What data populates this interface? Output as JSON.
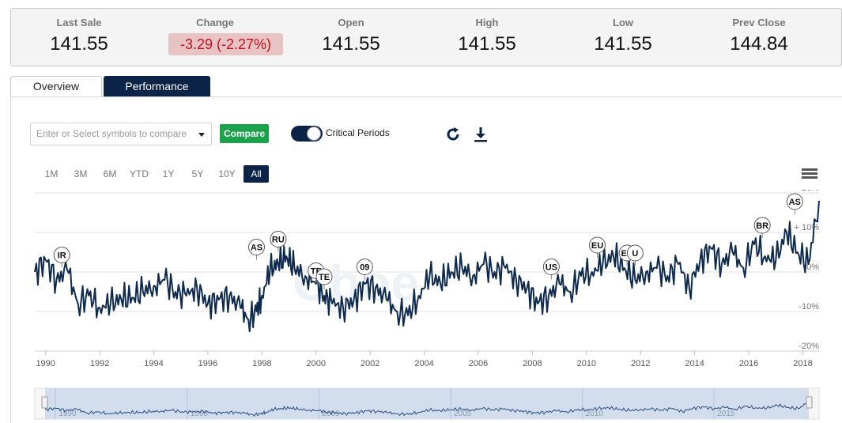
{
  "quote": {
    "cells": [
      {
        "label": "Last Sale",
        "value": "141.55"
      },
      {
        "label": "Change",
        "value": "-3.29 (-2.27%)"
      },
      {
        "label": "Open",
        "value": "141.55"
      },
      {
        "label": "High",
        "value": "141.55"
      },
      {
        "label": "Low",
        "value": "141.55"
      },
      {
        "label": "Prev Close",
        "value": "144.84"
      }
    ],
    "change_color": "#c1121f",
    "change_bg": "#e7c3c4"
  },
  "tabs": [
    {
      "label": "Overview",
      "active": false
    },
    {
      "label": "Performance",
      "active": true
    }
  ],
  "toolbar": {
    "symbol_placeholder": "Enter or Select symbols to compare",
    "compare_label": "Compare",
    "critical_periods_label": "Critical Periods",
    "critical_periods_on": true,
    "refresh_icon": "refresh-icon",
    "download_icon": "download-icon"
  },
  "ranges": [
    {
      "label": "1M",
      "active": false
    },
    {
      "label": "3M",
      "active": false
    },
    {
      "label": "6M",
      "active": false
    },
    {
      "label": "YTD",
      "active": false
    },
    {
      "label": "1Y",
      "active": false
    },
    {
      "label": "5Y",
      "active": false
    },
    {
      "label": "10Y",
      "active": false
    },
    {
      "label": "All",
      "active": true
    }
  ],
  "watermark": "Cboe",
  "colors": {
    "accent": "#0b2347",
    "line": "#0e2a4d",
    "green": "#1aa34a",
    "navigator_fill": "#c9d8ec"
  },
  "chart_data": {
    "type": "line",
    "series": [
      {
        "x": [
          1989.6,
          1990.0,
          1990.4,
          1990.8,
          1991.2,
          1991.6,
          1992.0,
          1992.4,
          1992.8,
          1993.2,
          1993.6,
          1994.0,
          1994.4,
          1994.8,
          1995.2,
          1995.6,
          1996.0,
          1996.4,
          1996.8,
          1997.2,
          1997.5,
          1997.8,
          1998.0,
          1998.3,
          1998.6,
          1998.9,
          1999.2,
          1999.6,
          2000.0,
          2000.3,
          2000.6,
          2001.0,
          2001.4,
          2001.8,
          2002.2,
          2002.6,
          2003.0,
          2003.4,
          2003.8,
          2004.2,
          2004.6,
          2005.0,
          2005.4,
          2005.8,
          2006.2,
          2006.6,
          2007.0,
          2007.4,
          2007.8,
          2008.2,
          2008.6,
          2009.0,
          2009.4,
          2009.8,
          2010.2,
          2010.6,
          2011.0,
          2011.4,
          2011.8,
          2012.2,
          2012.6,
          2013.0,
          2013.4,
          2013.8,
          2014.2,
          2014.6,
          2015.0,
          2015.4,
          2015.8,
          2016.2,
          2016.6,
          2017.0,
          2017.4,
          2017.8,
          2018.2,
          2018.6
        ],
        "y": [
          0.0,
          3.0,
          -2.0,
          0.5,
          -8.0,
          -6.0,
          -9.0,
          -8.0,
          -7.0,
          -6.5,
          -5.0,
          -3.5,
          -2.0,
          -5.0,
          -6.0,
          -4.0,
          -8.0,
          -7.0,
          -6.0,
          -9.0,
          -12.0,
          -10.0,
          -6.0,
          0.5,
          2.0,
          4.0,
          1.0,
          -1.0,
          -3.0,
          -6.0,
          -8.0,
          -9.0,
          -7.0,
          -3.0,
          -4.0,
          -7.0,
          -10.0,
          -11.0,
          -6.0,
          -1.0,
          -3.0,
          0.0,
          1.0,
          -1.0,
          2.0,
          0.0,
          1.0,
          -2.0,
          -4.0,
          -8.0,
          -6.0,
          -3.0,
          -5.0,
          -1.0,
          0.0,
          2.0,
          4.0,
          1.0,
          -2.0,
          0.0,
          1.0,
          -1.0,
          2.0,
          -4.0,
          3.0,
          6.0,
          2.0,
          5.0,
          1.0,
          7.0,
          4.0,
          3.0,
          10.0,
          5.0,
          2.0,
          18.0
        ]
      }
    ],
    "xlabel": "",
    "ylabel": "",
    "xlim": [
      1989.6,
      2018.6
    ],
    "ylim": [
      -20,
      20
    ],
    "xticks": [
      "1990",
      "1992",
      "1994",
      "1996",
      "1998",
      "2000",
      "2002",
      "2004",
      "2006",
      "2008",
      "2010",
      "2012",
      "2014",
      "2016",
      "2018"
    ],
    "yticks": [
      "+ 20%",
      "+ 10%",
      "0%",
      "-10%",
      "-20%"
    ],
    "critical_period_markers": [
      {
        "label": "IR",
        "x": 1990.6,
        "y": 1.5
      },
      {
        "label": "AS",
        "x": 1997.8,
        "y": 3.5
      },
      {
        "label": "RU",
        "x": 1998.6,
        "y": 5.5
      },
      {
        "label": "TE",
        "x": 2000.0,
        "y": -2.5
      },
      {
        "label": "TE",
        "x": 2000.3,
        "y": -4.0
      },
      {
        "label": "09",
        "x": 2001.8,
        "y": -1.5
      },
      {
        "label": "US",
        "x": 2008.7,
        "y": -1.5
      },
      {
        "label": "EU",
        "x": 2010.4,
        "y": 4.0
      },
      {
        "label": "EU",
        "x": 2011.5,
        "y": 2.0
      },
      {
        "label": "U",
        "x": 2011.8,
        "y": 2.0
      },
      {
        "label": "BR",
        "x": 2016.5,
        "y": 9.0
      },
      {
        "label": "AS",
        "x": 2017.7,
        "y": 15.0
      }
    ],
    "navigator_ticks": [
      "1990",
      "1995",
      "2000",
      "2005",
      "2010",
      "2015"
    ],
    "grid": true
  }
}
